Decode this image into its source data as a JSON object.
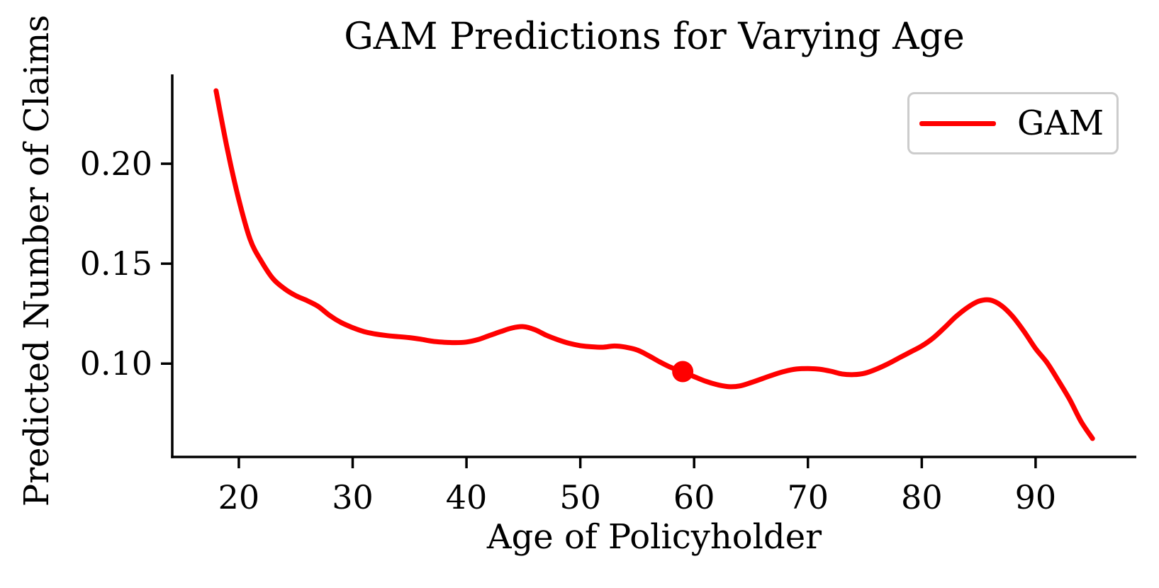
{
  "chart_data": {
    "type": "line",
    "title": "GAM Predictions for Varying Age",
    "xlabel": "Age of Policyholder",
    "ylabel": "Predicted Number of Claims",
    "xlim": [
      14.15,
      98.85
    ],
    "ylim": [
      0.0533,
      0.2447
    ],
    "xticks": [
      20,
      30,
      40,
      50,
      60,
      70,
      80,
      90
    ],
    "xtick_labels": [
      "20",
      "30",
      "40",
      "50",
      "60",
      "70",
      "80",
      "90"
    ],
    "yticks": [
      0.1,
      0.15,
      0.2
    ],
    "ytick_labels": [
      "0.10",
      "0.15",
      "0.20"
    ],
    "grid": false,
    "axis_color": "#000000",
    "legend": {
      "position": "upper right",
      "border_color": "#cccccc",
      "entries": [
        {
          "label": "GAM",
          "color": "#ff0000"
        }
      ]
    },
    "series": [
      {
        "name": "GAM",
        "color": "#ff0000",
        "x": [
          18,
          19,
          20,
          21,
          22,
          23,
          24,
          25,
          26,
          27,
          28,
          29,
          30,
          31,
          32,
          33,
          34,
          35,
          36,
          37,
          38,
          39,
          40,
          41,
          42,
          43,
          44,
          45,
          46,
          47,
          48,
          49,
          50,
          51,
          52,
          53,
          54,
          55,
          56,
          57,
          58,
          59,
          60,
          61,
          62,
          63,
          64,
          65,
          66,
          67,
          68,
          69,
          70,
          71,
          72,
          73,
          74,
          75,
          76,
          77,
          78,
          79,
          80,
          81,
          82,
          83,
          84,
          85,
          86,
          87,
          88,
          89,
          90,
          91,
          92,
          93,
          94,
          95
        ],
        "y": [
          0.2365,
          0.207,
          0.182,
          0.162,
          0.151,
          0.1425,
          0.1375,
          0.134,
          0.1315,
          0.1285,
          0.124,
          0.1205,
          0.118,
          0.116,
          0.1148,
          0.114,
          0.1135,
          0.113,
          0.1122,
          0.1112,
          0.1107,
          0.1105,
          0.1108,
          0.112,
          0.114,
          0.116,
          0.1178,
          0.1185,
          0.117,
          0.1142,
          0.112,
          0.1102,
          0.109,
          0.1084,
          0.1082,
          0.1088,
          0.1082,
          0.1068,
          0.104,
          0.1008,
          0.098,
          0.096,
          0.0935,
          0.0912,
          0.0895,
          0.0885,
          0.0888,
          0.0905,
          0.0925,
          0.0945,
          0.0962,
          0.0973,
          0.0975,
          0.0972,
          0.0962,
          0.0948,
          0.0945,
          0.0952,
          0.0972,
          0.0998,
          0.1028,
          0.1058,
          0.1088,
          0.1128,
          0.118,
          0.1235,
          0.128,
          0.1312,
          0.1318,
          0.129,
          0.1235,
          0.116,
          0.1075,
          0.1005,
          0.0915,
          0.082,
          0.071,
          0.0625
        ]
      }
    ],
    "marker": {
      "x": 59,
      "y": 0.096,
      "color": "#ff0000"
    }
  }
}
